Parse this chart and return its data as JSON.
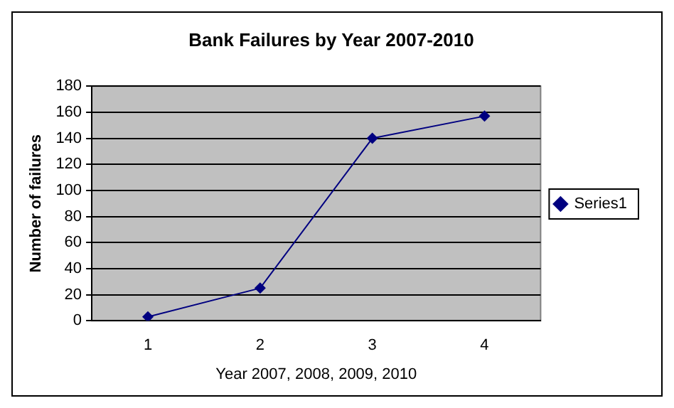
{
  "chart_data": {
    "type": "line",
    "title": "Bank Failures by Year 2007-2010",
    "xlabel": "Year 2007, 2008, 2009, 2010",
    "ylabel": "Number of failures",
    "categories": [
      "1",
      "2",
      "3",
      "4"
    ],
    "series": [
      {
        "name": "Series1",
        "color": "#000080",
        "values": [
          3,
          25,
          140,
          157
        ]
      }
    ],
    "ylim": [
      0,
      180
    ],
    "yticks": [
      0,
      20,
      40,
      60,
      80,
      100,
      120,
      140,
      160,
      180
    ],
    "grid": "y",
    "legend": "right",
    "marker": "diamond",
    "line_style": "solid"
  }
}
